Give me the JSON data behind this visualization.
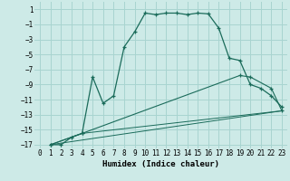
{
  "xlabel": "Humidex (Indice chaleur)",
  "bg_color": "#cdeae7",
  "grid_color": "#a8d4d0",
  "line_color": "#1a6b5a",
  "xlim": [
    -0.5,
    23.5
  ],
  "ylim": [
    -17.5,
    2
  ],
  "yticks": [
    1,
    -1,
    -3,
    -5,
    -7,
    -9,
    -11,
    -13,
    -15,
    -17
  ],
  "xticks": [
    0,
    1,
    2,
    3,
    4,
    5,
    6,
    7,
    8,
    9,
    10,
    11,
    12,
    13,
    14,
    15,
    16,
    17,
    18,
    19,
    20,
    21,
    22,
    23
  ],
  "main_x": [
    1,
    2,
    3,
    4,
    5,
    6,
    7,
    8,
    9,
    10,
    11,
    12,
    13,
    14,
    15,
    16,
    17,
    18,
    19,
    20,
    21,
    22,
    23
  ],
  "main_y": [
    -17,
    -17,
    -16,
    -15.5,
    -8,
    -11.5,
    -10.5,
    -4,
    -2,
    0.5,
    0.3,
    0.5,
    0.5,
    0.3,
    0.5,
    0.4,
    -1.5,
    -5.5,
    -5.8,
    -9.0,
    -9.5,
    -10.5,
    -12
  ],
  "line2_x": [
    1,
    4,
    23
  ],
  "line2_y": [
    -17,
    -15.5,
    -12.5
  ],
  "line3_x": [
    1,
    4,
    19,
    20,
    22,
    23
  ],
  "line3_y": [
    -17,
    -15.5,
    -7.8,
    -8.0,
    -9.5,
    -12.5
  ],
  "line4_x": [
    1,
    23
  ],
  "line4_y": [
    -17,
    -12.5
  ]
}
